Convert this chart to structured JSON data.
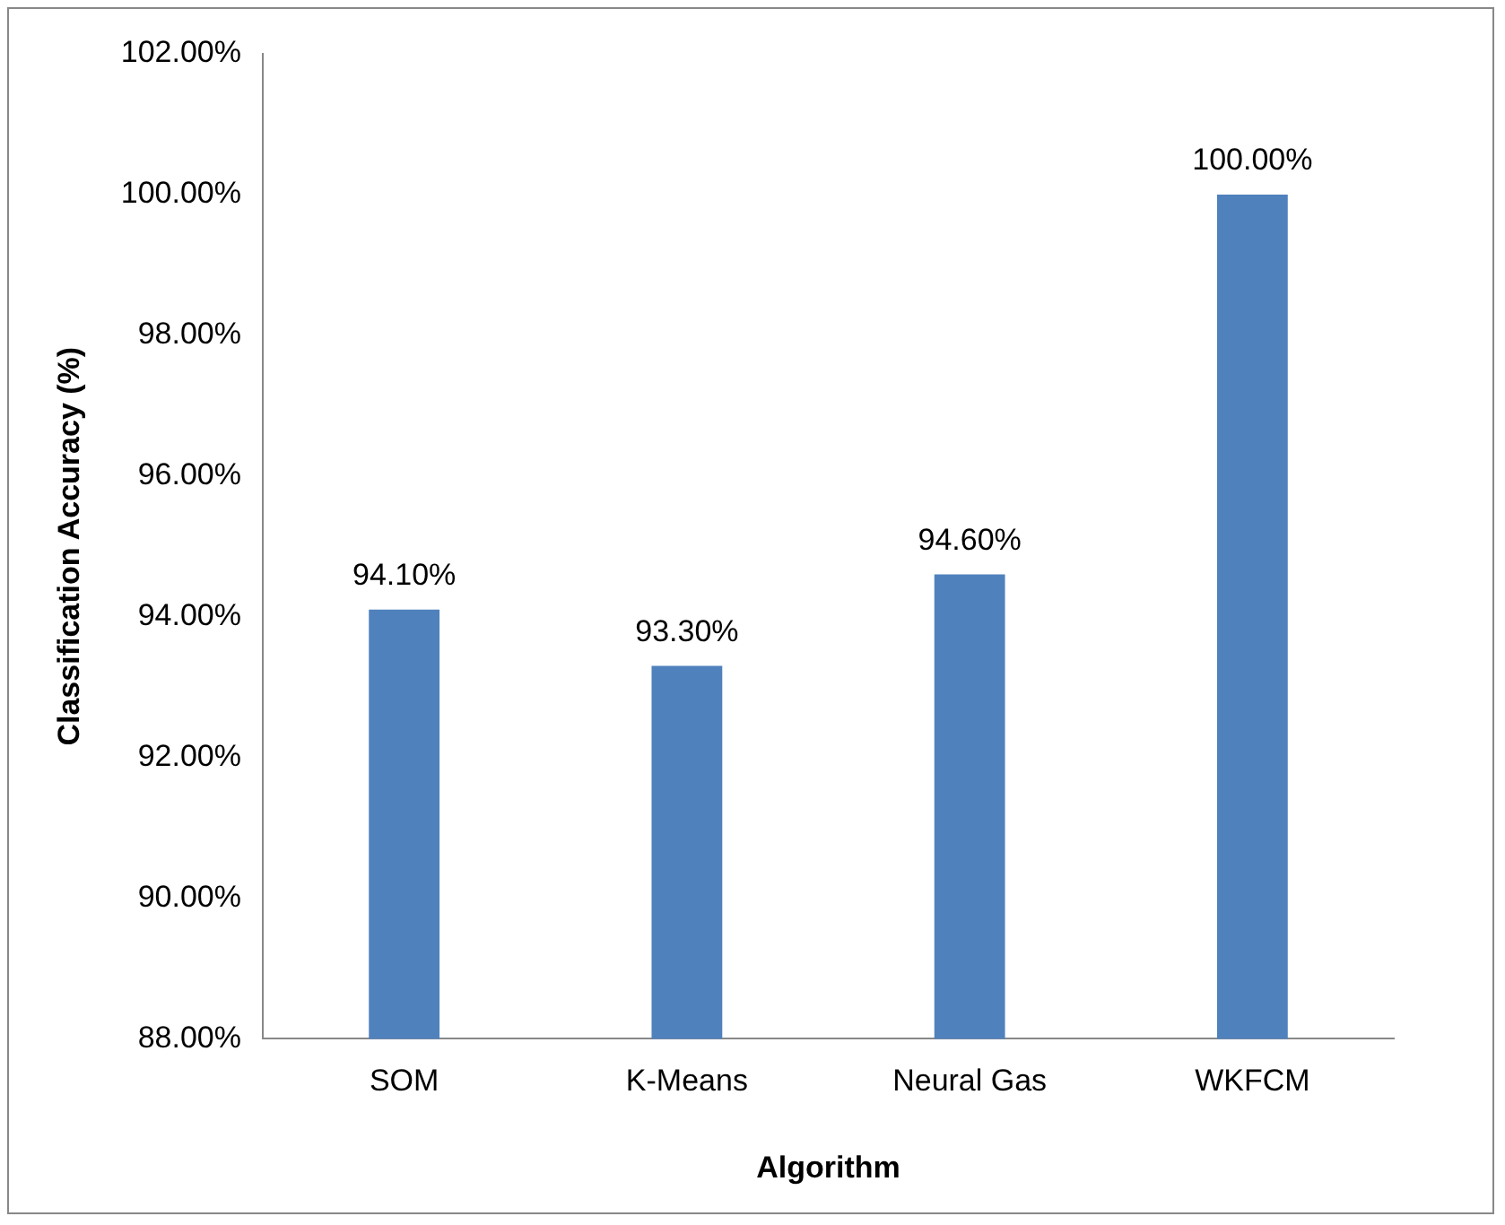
{
  "chart_data": {
    "type": "bar",
    "xlabel": "Algorithm",
    "ylabel": "Classification Accuracy (%)",
    "categories": [
      "SOM",
      "K-Means",
      "Neural Gas",
      "WKFCM"
    ],
    "values": [
      94.1,
      93.3,
      94.6,
      100
    ],
    "value_labels": [
      "94.10%",
      "93.30%",
      "94.60%",
      "100.00%"
    ],
    "color": "#4f81bd",
    "ylim": [
      88,
      102
    ],
    "yticks": [
      {
        "value": 88,
        "label": "88.00%"
      },
      {
        "value": 90,
        "label": "90.00%"
      },
      {
        "value": 92,
        "label": "92.00%"
      },
      {
        "value": 94,
        "label": "94.00%"
      },
      {
        "value": 96,
        "label": "96.00%"
      },
      {
        "value": 98,
        "label": "98.00%"
      },
      {
        "value": 100,
        "label": "100.00%"
      },
      {
        "value": 102,
        "label": "102.00%"
      }
    ],
    "grid": false,
    "legend": false
  }
}
